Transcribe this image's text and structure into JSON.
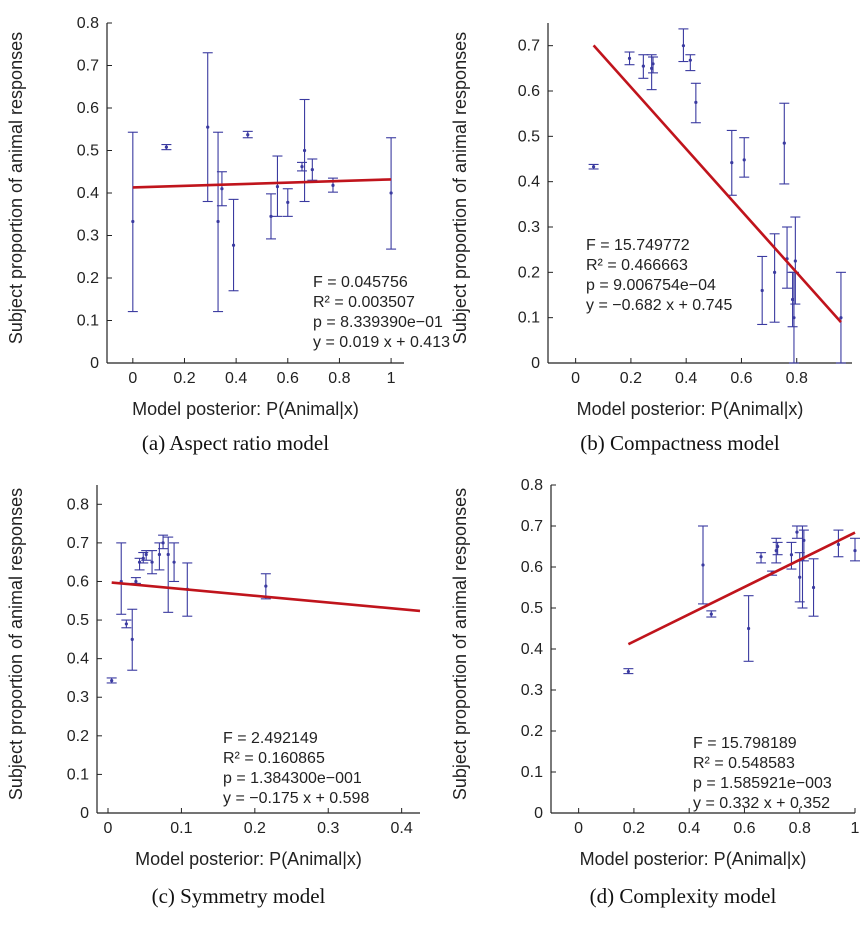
{
  "colors": {
    "fit_line": "#c0141c",
    "error_bars": "#3a3aa0",
    "axes": "#222222",
    "background": "#ffffff"
  },
  "chart_data": [
    {
      "type": "scatter",
      "caption": "(a)  Aspect ratio model",
      "xlabel": "Model posterior: P(Animal|x)",
      "ylabel": "Subject proportion of animal responses",
      "xlim": [
        -0.1,
        1.05
      ],
      "ylim": [
        0,
        0.8
      ],
      "xticks": [
        0,
        0.2,
        0.4,
        0.6,
        0.8,
        1
      ],
      "yticks": [
        0,
        0.1,
        0.2,
        0.3,
        0.4,
        0.5,
        0.6,
        0.7,
        0.8
      ],
      "xtick_labels": [
        "0",
        "0.2",
        "0.4",
        "0.6",
        "0.8",
        "1"
      ],
      "ytick_labels": [
        "0",
        "0.1",
        "0.2",
        "0.3",
        "0.4",
        "0.5",
        "0.6",
        "0.7",
        "0.8"
      ],
      "grid": false,
      "fit": {
        "slope": 0.019,
        "intercept": 0.413,
        "x_range": [
          0,
          1
        ]
      },
      "stats": [
        "F = 0.045756",
        "R² = 0.003507",
        "p = 8.339390e−01",
        "y = 0.019 x + 0.413"
      ],
      "points": [
        {
          "x": 0.0,
          "y": 0.333,
          "lo": 0.121,
          "hi": 0.543
        },
        {
          "x": 0.13,
          "y": 0.508,
          "lo": 0.502,
          "hi": 0.514
        },
        {
          "x": 0.29,
          "y": 0.555,
          "lo": 0.38,
          "hi": 0.73
        },
        {
          "x": 0.33,
          "y": 0.333,
          "lo": 0.121,
          "hi": 0.543
        },
        {
          "x": 0.345,
          "y": 0.41,
          "lo": 0.37,
          "hi": 0.45
        },
        {
          "x": 0.39,
          "y": 0.277,
          "lo": 0.17,
          "hi": 0.385
        },
        {
          "x": 0.445,
          "y": 0.537,
          "lo": 0.53,
          "hi": 0.545
        },
        {
          "x": 0.535,
          "y": 0.345,
          "lo": 0.292,
          "hi": 0.398
        },
        {
          "x": 0.56,
          "y": 0.415,
          "lo": 0.345,
          "hi": 0.487
        },
        {
          "x": 0.6,
          "y": 0.378,
          "lo": 0.345,
          "hi": 0.41
        },
        {
          "x": 0.655,
          "y": 0.462,
          "lo": 0.452,
          "hi": 0.472
        },
        {
          "x": 0.665,
          "y": 0.5,
          "lo": 0.38,
          "hi": 0.62
        },
        {
          "x": 0.695,
          "y": 0.455,
          "lo": 0.43,
          "hi": 0.48
        },
        {
          "x": 0.775,
          "y": 0.418,
          "lo": 0.402,
          "hi": 0.435
        },
        {
          "x": 1.0,
          "y": 0.4,
          "lo": 0.268,
          "hi": 0.53
        }
      ]
    },
    {
      "type": "scatter",
      "caption": "(b)  Compactness model",
      "xlabel": "Model posterior: P(Animal|x)",
      "ylabel": "Subject proportion of animal responses",
      "xlim": [
        -0.1,
        1.0
      ],
      "ylim": [
        0,
        0.75
      ],
      "xticks": [
        0,
        0.2,
        0.4,
        0.6,
        0.8
      ],
      "yticks": [
        0,
        0.1,
        0.2,
        0.3,
        0.4,
        0.5,
        0.6,
        0.7
      ],
      "xtick_labels": [
        "0",
        "0.2",
        "0.4",
        "0.6",
        "0.8"
      ],
      "ytick_labels": [
        "0",
        "0.1",
        "0.2",
        "0.3",
        "0.4",
        "0.5",
        "0.6",
        "0.7"
      ],
      "grid": false,
      "fit": {
        "slope": -0.682,
        "intercept": 0.745,
        "x_range": [
          0.065,
          0.96
        ]
      },
      "stats": [
        "F = 15.749772",
        "R² = 0.466663",
        "p = 9.006754e−04",
        "y = −0.682 x + 0.745"
      ],
      "points": [
        {
          "x": 0.065,
          "y": 0.433,
          "lo": 0.428,
          "hi": 0.438
        },
        {
          "x": 0.195,
          "y": 0.672,
          "lo": 0.658,
          "hi": 0.686
        },
        {
          "x": 0.245,
          "y": 0.655,
          "lo": 0.628,
          "hi": 0.68
        },
        {
          "x": 0.275,
          "y": 0.65,
          "lo": 0.603,
          "hi": 0.68
        },
        {
          "x": 0.28,
          "y": 0.66,
          "lo": 0.64,
          "hi": 0.675
        },
        {
          "x": 0.39,
          "y": 0.7,
          "lo": 0.665,
          "hi": 0.737
        },
        {
          "x": 0.415,
          "y": 0.668,
          "lo": 0.645,
          "hi": 0.68
        },
        {
          "x": 0.435,
          "y": 0.575,
          "lo": 0.53,
          "hi": 0.617
        },
        {
          "x": 0.565,
          "y": 0.442,
          "lo": 0.37,
          "hi": 0.513
        },
        {
          "x": 0.61,
          "y": 0.448,
          "lo": 0.41,
          "hi": 0.497
        },
        {
          "x": 0.675,
          "y": 0.16,
          "lo": 0.085,
          "hi": 0.235
        },
        {
          "x": 0.72,
          "y": 0.2,
          "lo": 0.09,
          "hi": 0.285
        },
        {
          "x": 0.755,
          "y": 0.485,
          "lo": 0.395,
          "hi": 0.573
        },
        {
          "x": 0.765,
          "y": 0.23,
          "lo": 0.165,
          "hi": 0.3
        },
        {
          "x": 0.785,
          "y": 0.14,
          "lo": 0.08,
          "hi": 0.2
        },
        {
          "x": 0.79,
          "y": 0.1,
          "lo": 0.0,
          "hi": 0.2
        },
        {
          "x": 0.795,
          "y": 0.225,
          "lo": 0.13,
          "hi": 0.322
        },
        {
          "x": 0.96,
          "y": 0.1,
          "lo": 0.0,
          "hi": 0.2
        }
      ]
    },
    {
      "type": "scatter",
      "caption": "(c)  Symmetry model",
      "xlabel": "Model posterior: P(Animal|x)",
      "ylabel": "Subject proportion of animal responses",
      "xlim": [
        -0.015,
        0.425
      ],
      "ylim": [
        0,
        0.85
      ],
      "xticks": [
        0,
        0.1,
        0.2,
        0.3,
        0.4
      ],
      "yticks": [
        0,
        0.1,
        0.2,
        0.3,
        0.4,
        0.5,
        0.6,
        0.7,
        0.8
      ],
      "xtick_labels": [
        "0",
        "0.1",
        "0.2",
        "0.3",
        "0.4"
      ],
      "ytick_labels": [
        "0",
        "0.1",
        "0.2",
        "0.3",
        "0.4",
        "0.5",
        "0.6",
        "0.7",
        "0.8"
      ],
      "grid": false,
      "fit": {
        "slope": -0.175,
        "intercept": 0.598,
        "x_range": [
          0.005,
          0.425
        ]
      },
      "stats": [
        "F = 2.492149",
        "R² = 0.160865",
        "p = 1.384300e−001",
        "y = −0.175 x + 0.598"
      ],
      "points": [
        {
          "x": 0.005,
          "y": 0.343,
          "lo": 0.337,
          "hi": 0.35
        },
        {
          "x": 0.018,
          "y": 0.6,
          "lo": 0.515,
          "hi": 0.7
        },
        {
          "x": 0.025,
          "y": 0.49,
          "lo": 0.48,
          "hi": 0.5
        },
        {
          "x": 0.033,
          "y": 0.45,
          "lo": 0.37,
          "hi": 0.528
        },
        {
          "x": 0.038,
          "y": 0.6,
          "lo": 0.595,
          "hi": 0.61
        },
        {
          "x": 0.043,
          "y": 0.65,
          "lo": 0.63,
          "hi": 0.66
        },
        {
          "x": 0.048,
          "y": 0.66,
          "lo": 0.648,
          "hi": 0.675
        },
        {
          "x": 0.052,
          "y": 0.67,
          "lo": 0.655,
          "hi": 0.68
        },
        {
          "x": 0.06,
          "y": 0.65,
          "lo": 0.62,
          "hi": 0.68
        },
        {
          "x": 0.07,
          "y": 0.67,
          "lo": 0.63,
          "hi": 0.7
        },
        {
          "x": 0.075,
          "y": 0.7,
          "lo": 0.685,
          "hi": 0.72
        },
        {
          "x": 0.082,
          "y": 0.67,
          "lo": 0.52,
          "hi": 0.715
        },
        {
          "x": 0.09,
          "y": 0.65,
          "lo": 0.6,
          "hi": 0.7
        },
        {
          "x": 0.108,
          "y": 0.58,
          "lo": 0.51,
          "hi": 0.648
        },
        {
          "x": 0.215,
          "y": 0.588,
          "lo": 0.555,
          "hi": 0.62
        }
      ]
    },
    {
      "type": "scatter",
      "caption": "(d)  Complexity model",
      "xlabel": "Model posterior: P(Animal|x)",
      "ylabel": "Subject proportion of animal responses",
      "xlim": [
        -0.1,
        1.0
      ],
      "ylim": [
        0,
        0.8
      ],
      "xticks": [
        0,
        0.2,
        0.4,
        0.6,
        0.8,
        1
      ],
      "yticks": [
        0,
        0.1,
        0.2,
        0.3,
        0.4,
        0.5,
        0.6,
        0.7,
        0.8
      ],
      "xtick_labels": [
        "0",
        "0.2",
        "0.4",
        "0.6",
        "0.8",
        "1"
      ],
      "ytick_labels": [
        "0",
        "0.1",
        "0.2",
        "0.3",
        "0.4",
        "0.5",
        "0.6",
        "0.7",
        "0.8"
      ],
      "grid": false,
      "fit": {
        "slope": 0.332,
        "intercept": 0.352,
        "x_range": [
          0.18,
          1.0
        ]
      },
      "stats": [
        "F = 15.798189",
        "R² = 0.548583",
        "p = 1.585921e−003",
        "y = 0.332 x + 0.352"
      ],
      "points": [
        {
          "x": 0.18,
          "y": 0.345,
          "lo": 0.34,
          "hi": 0.352
        },
        {
          "x": 0.45,
          "y": 0.605,
          "lo": 0.51,
          "hi": 0.7
        },
        {
          "x": 0.48,
          "y": 0.485,
          "lo": 0.478,
          "hi": 0.493
        },
        {
          "x": 0.615,
          "y": 0.45,
          "lo": 0.37,
          "hi": 0.53
        },
        {
          "x": 0.66,
          "y": 0.625,
          "lo": 0.61,
          "hi": 0.635
        },
        {
          "x": 0.7,
          "y": 0.585,
          "lo": 0.58,
          "hi": 0.59
        },
        {
          "x": 0.715,
          "y": 0.64,
          "lo": 0.61,
          "hi": 0.67
        },
        {
          "x": 0.72,
          "y": 0.65,
          "lo": 0.63,
          "hi": 0.66
        },
        {
          "x": 0.77,
          "y": 0.63,
          "lo": 0.595,
          "hi": 0.66
        },
        {
          "x": 0.79,
          "y": 0.685,
          "lo": 0.67,
          "hi": 0.7
        },
        {
          "x": 0.8,
          "y": 0.575,
          "lo": 0.515,
          "hi": 0.635
        },
        {
          "x": 0.81,
          "y": 0.62,
          "lo": 0.5,
          "hi": 0.7
        },
        {
          "x": 0.815,
          "y": 0.665,
          "lo": 0.615,
          "hi": 0.69
        },
        {
          "x": 0.85,
          "y": 0.55,
          "lo": 0.48,
          "hi": 0.62
        },
        {
          "x": 0.94,
          "y": 0.655,
          "lo": 0.625,
          "hi": 0.69
        },
        {
          "x": 1.0,
          "y": 0.64,
          "lo": 0.615,
          "hi": 0.67
        }
      ]
    }
  ]
}
